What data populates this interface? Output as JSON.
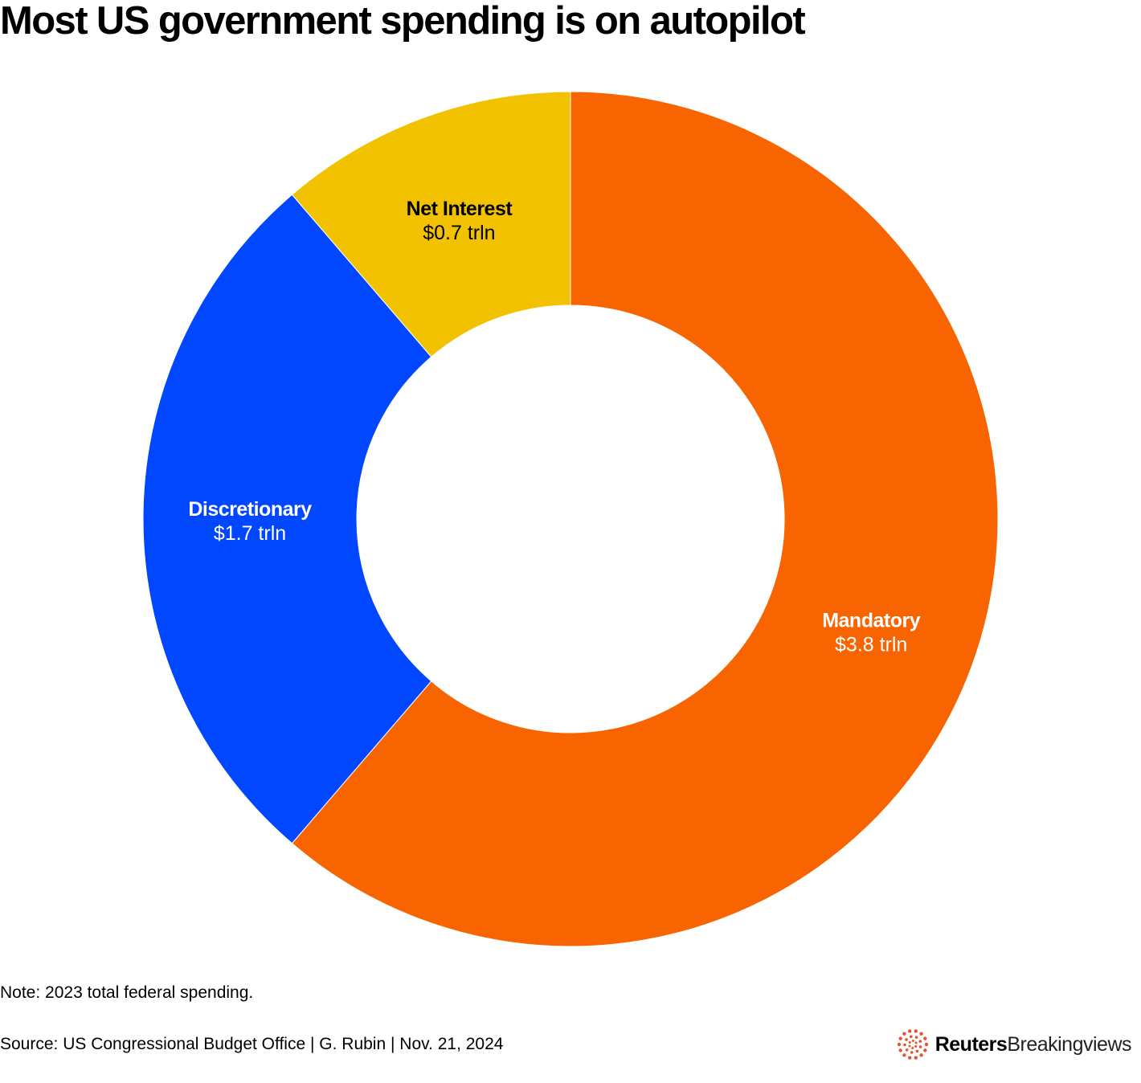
{
  "title": "Most US government spending is on autopilot",
  "chart_data": {
    "type": "pie",
    "variant": "donut",
    "title": "Most US government spending is on autopilot",
    "unit": "trln",
    "categories": [
      "Mandatory",
      "Discretionary",
      "Net Interest"
    ],
    "values": [
      3.8,
      1.7,
      0.7
    ],
    "value_labels": [
      "$3.8 trln",
      "$1.7 trln",
      "$0.7 trln"
    ],
    "colors": [
      "#F76400",
      "#0047FF",
      "#F2C200"
    ],
    "label_colors": [
      "#ffffff",
      "#ffffff",
      "#000000"
    ],
    "start": "top",
    "direction": "clockwise"
  },
  "footer": {
    "note": "Note: 2023 total federal spending.",
    "source": "Source: US Congressional Budget Office | G. Rubin | Nov. 21, 2024"
  },
  "logo": {
    "brand_bold": "Reuters",
    "brand_light": "Breakingviews",
    "accent_color": "#E4572E"
  }
}
